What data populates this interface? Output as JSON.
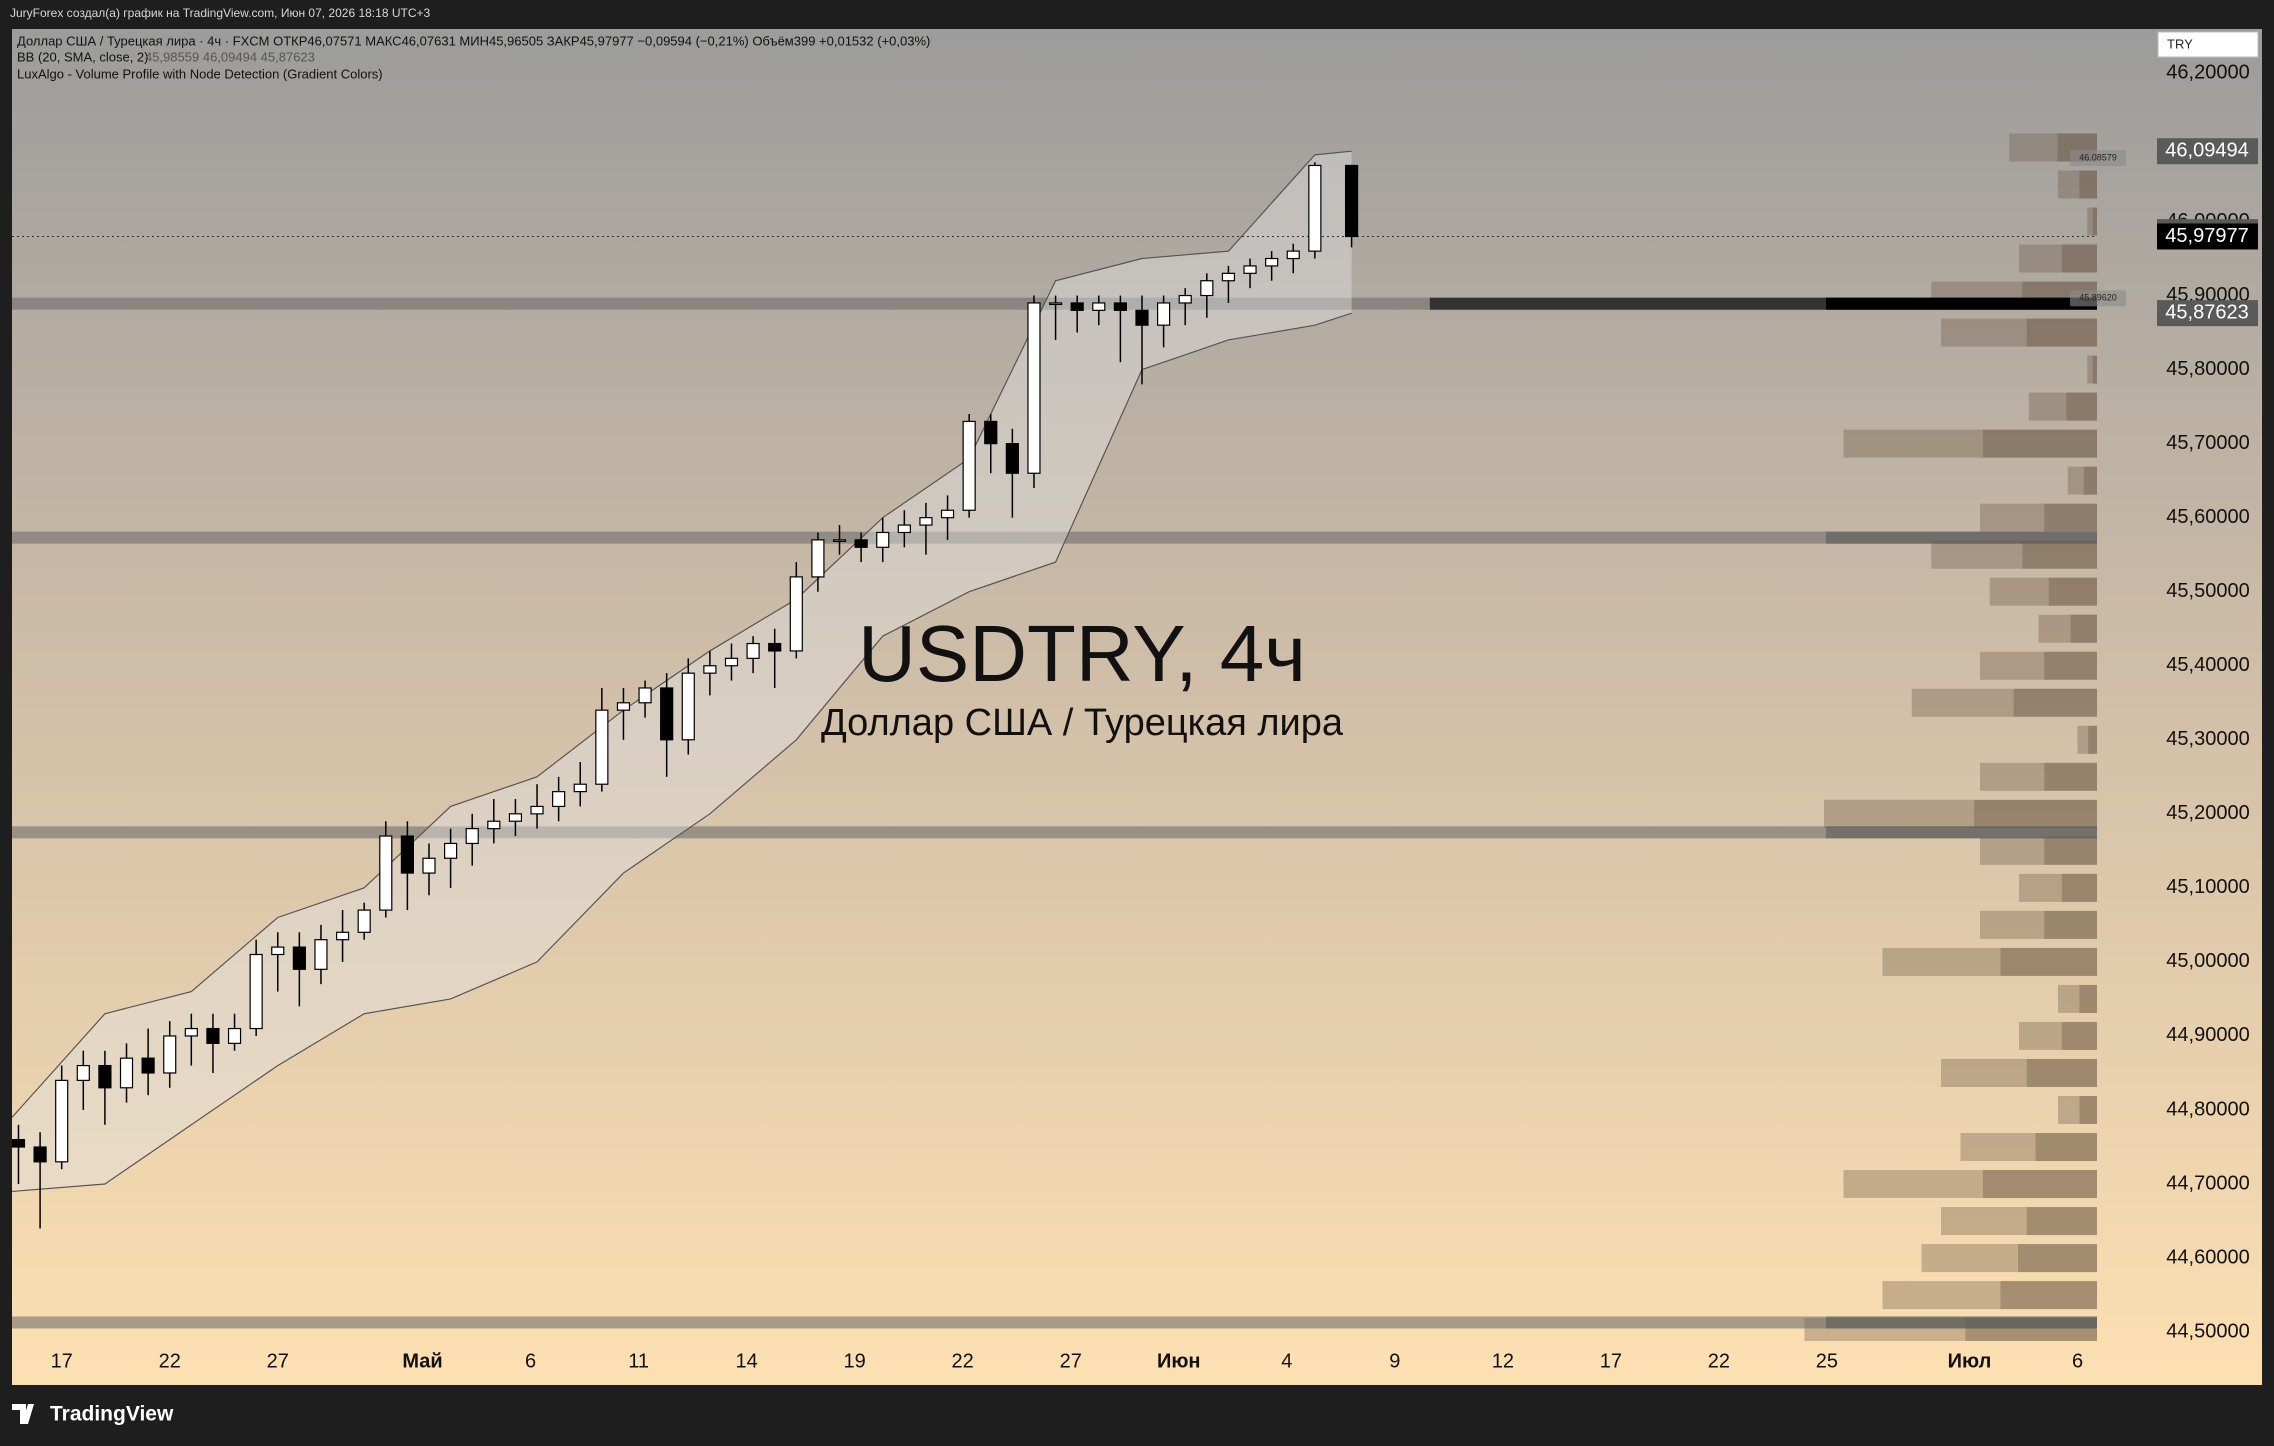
{
  "ui": {
    "author_line": "JuryForex создал(а) график на TradingView.com, Июн 07, 2026 18:18 UTC+3",
    "legend_main": "Доллар США / Турецкая лира · 4ч · FXCM  ОТКР46,07571  МАКС46,07631  МИН45,96505  ЗАКР45,97977  −0,09594 (−0,21%)  Объём399  +0,01532 (+0,03%)",
    "legend_vp": "LuxAlgo - Volume Profile with Node Detection (Gradient Colors)",
    "currency": "TRY",
    "brand": "TradingView"
  },
  "chart_data": {
    "type": "candlestick",
    "title": "USDTRY, 4ч",
    "subtitle": "Доллар США / Турецкая лира",
    "xlim": [
      -2.3,
      94.2
    ],
    "xticks": [
      {
        "value": 0,
        "label": "17"
      },
      {
        "value": 5,
        "label": "22"
      },
      {
        "value": 10,
        "label": "27"
      },
      {
        "value": 16.7,
        "label": "Май",
        "bold": true
      },
      {
        "value": 21.7,
        "label": "6"
      },
      {
        "value": 26.7,
        "label": "11"
      },
      {
        "value": 31.7,
        "label": "14"
      },
      {
        "value": 36.7,
        "label": "19"
      },
      {
        "value": 41.7,
        "label": "22"
      },
      {
        "value": 46.7,
        "label": "27"
      },
      {
        "value": 51.7,
        "label": "Июн",
        "bold": true
      },
      {
        "value": 56.7,
        "label": "4"
      },
      {
        "value": 61.7,
        "label": "9"
      },
      {
        "value": 66.7,
        "label": "12"
      },
      {
        "value": 71.7,
        "label": "17"
      },
      {
        "value": 76.7,
        "label": "22"
      },
      {
        "value": 81.7,
        "label": "25"
      },
      {
        "value": 88.3,
        "label": "Июл",
        "bold": true
      },
      {
        "value": 93.3,
        "label": "6"
      }
    ],
    "ylim": [
      44.488,
      46.26
    ],
    "yticks": [
      {
        "value": 44.5,
        "label": "44,50000"
      },
      {
        "value": 44.6,
        "label": "44,60000"
      },
      {
        "value": 44.7,
        "label": "44,70000"
      },
      {
        "value": 44.8,
        "label": "44,80000"
      },
      {
        "value": 44.9,
        "label": "44,90000"
      },
      {
        "value": 45.0,
        "label": "45,00000"
      },
      {
        "value": 45.1,
        "label": "45,10000"
      },
      {
        "value": 45.2,
        "label": "45,20000"
      },
      {
        "value": 45.3,
        "label": "45,30000"
      },
      {
        "value": 45.4,
        "label": "45,40000"
      },
      {
        "value": 45.5,
        "label": "45,50000"
      },
      {
        "value": 45.6,
        "label": "45,60000"
      },
      {
        "value": 45.7,
        "label": "45,70000"
      },
      {
        "value": 45.8,
        "label": "45,80000"
      },
      {
        "value": 45.9,
        "label": "45,90000"
      },
      {
        "value": 46.0,
        "label": "46,00000"
      },
      {
        "value": 46.1,
        "label": "46,10000"
      },
      {
        "value": 46.2,
        "label": "46,20000"
      }
    ],
    "x": [
      -2,
      -1,
      0,
      1,
      2,
      3,
      4,
      5,
      6,
      7,
      8,
      9,
      10,
      11,
      12,
      13,
      14,
      15,
      16,
      17,
      18,
      19,
      20,
      21,
      22,
      23,
      24,
      25,
      26,
      27,
      28,
      29,
      30,
      31,
      32,
      33,
      34,
      35,
      36,
      37,
      38,
      39,
      40,
      41,
      42,
      43,
      44,
      45,
      46,
      47,
      48,
      49,
      50,
      51,
      52,
      53,
      54,
      55,
      56,
      57,
      58,
      59.7
    ],
    "open": [
      44.76,
      44.75,
      44.73,
      44.84,
      44.86,
      44.83,
      44.87,
      44.85,
      44.9,
      44.91,
      44.89,
      44.91,
      45.01,
      45.02,
      44.99,
      45.03,
      45.04,
      45.07,
      45.17,
      45.12,
      45.14,
      45.16,
      45.18,
      45.19,
      45.2,
      45.21,
      45.23,
      45.24,
      45.34,
      45.35,
      45.37,
      45.3,
      45.39,
      45.4,
      45.41,
      45.43,
      45.42,
      45.52,
      45.57,
      45.57,
      45.56,
      45.58,
      45.59,
      45.6,
      45.61,
      45.73,
      45.7,
      45.66,
      45.89,
      45.89,
      45.88,
      45.89,
      45.88,
      45.86,
      45.89,
      45.9,
      45.92,
      45.93,
      45.94,
      45.95,
      45.96,
      46.07571
    ],
    "high": [
      44.78,
      44.77,
      44.86,
      44.88,
      44.88,
      44.89,
      44.91,
      44.92,
      44.93,
      44.93,
      44.93,
      45.03,
      45.04,
      45.04,
      45.05,
      45.07,
      45.08,
      45.19,
      45.19,
      45.16,
      45.18,
      45.2,
      45.22,
      45.22,
      45.24,
      45.25,
      45.27,
      45.37,
      45.37,
      45.38,
      45.39,
      45.41,
      45.42,
      45.43,
      45.44,
      45.45,
      45.54,
      45.58,
      45.59,
      45.58,
      45.6,
      45.61,
      45.62,
      45.63,
      45.74,
      45.74,
      45.72,
      45.9,
      45.9,
      45.9,
      45.9,
      45.9,
      45.9,
      45.9,
      45.91,
      45.93,
      45.94,
      45.95,
      45.96,
      45.97,
      46.08,
      46.07631
    ],
    "low": [
      44.7,
      44.64,
      44.72,
      44.8,
      44.78,
      44.81,
      44.82,
      44.83,
      44.86,
      44.85,
      44.88,
      44.9,
      44.96,
      44.94,
      44.97,
      45.0,
      45.03,
      45.06,
      45.07,
      45.09,
      45.1,
      45.13,
      45.16,
      45.17,
      45.18,
      45.19,
      45.21,
      45.23,
      45.3,
      45.33,
      45.25,
      45.28,
      45.36,
      45.38,
      45.39,
      45.37,
      45.41,
      45.5,
      45.55,
      45.54,
      45.54,
      45.56,
      45.55,
      45.57,
      45.6,
      45.66,
      45.6,
      45.64,
      45.84,
      45.85,
      45.86,
      45.81,
      45.78,
      45.83,
      45.86,
      45.87,
      45.89,
      45.91,
      45.92,
      45.93,
      45.95,
      45.96505
    ],
    "close": [
      44.75,
      44.73,
      44.84,
      44.86,
      44.83,
      44.87,
      44.85,
      44.9,
      44.91,
      44.89,
      44.91,
      45.01,
      45.02,
      44.99,
      45.03,
      45.04,
      45.07,
      45.17,
      45.12,
      45.14,
      45.16,
      45.18,
      45.19,
      45.2,
      45.21,
      45.23,
      45.24,
      45.34,
      45.35,
      45.37,
      45.3,
      45.39,
      45.4,
      45.41,
      45.43,
      45.42,
      45.52,
      45.57,
      45.57,
      45.56,
      45.58,
      45.59,
      45.6,
      45.61,
      45.73,
      45.7,
      45.66,
      45.89,
      45.89,
      45.88,
      45.89,
      45.88,
      45.86,
      45.89,
      45.9,
      45.92,
      45.93,
      45.94,
      45.95,
      45.96,
      46.07571,
      45.97977
    ],
    "bb": {
      "name": "BB (20, SMA, close, 2)",
      "values_text": "45,98559  46,09494  45,87623",
      "x": [
        -2.3,
        2,
        6,
        10,
        14,
        18,
        22,
        26,
        30,
        34,
        38,
        42,
        46,
        50,
        54,
        58,
        59.7
      ],
      "upper": [
        44.79,
        44.93,
        44.96,
        45.06,
        45.1,
        45.21,
        45.25,
        45.34,
        45.42,
        45.49,
        45.6,
        45.68,
        45.92,
        45.95,
        45.96,
        46.09,
        46.09494
      ],
      "lower": [
        44.69,
        44.7,
        44.78,
        44.86,
        44.93,
        44.95,
        45.0,
        45.12,
        45.2,
        45.3,
        45.44,
        45.5,
        45.54,
        45.8,
        45.84,
        45.86,
        45.87623
      ]
    },
    "volume_profile": {
      "levels": [
        44.5,
        44.55,
        44.6,
        44.65,
        44.7,
        44.75,
        44.8,
        44.85,
        44.9,
        44.95,
        45.0,
        45.05,
        45.1,
        45.15,
        45.2,
        45.25,
        45.3,
        45.35,
        45.4,
        45.45,
        45.5,
        45.55,
        45.6,
        45.65,
        45.7,
        45.75,
        45.8,
        45.85,
        45.9,
        45.95,
        46.0,
        46.05,
        46.1
      ],
      "values": [
        150,
        110,
        90,
        80,
        130,
        70,
        20,
        80,
        40,
        20,
        110,
        60,
        40,
        60,
        140,
        60,
        10,
        95,
        60,
        30,
        55,
        85,
        60,
        15,
        130,
        35,
        5,
        80,
        85,
        40,
        5,
        20,
        45
      ]
    },
    "nodes": [
      45.889,
      45.573,
      45.175,
      44.513
    ],
    "price_labels": [
      {
        "value": 46.09494,
        "label": "46,09494",
        "color": "#5a5a5a"
      },
      {
        "value": 45.98559,
        "label": "45,98559",
        "color": "#5a5a5a"
      },
      {
        "value": 45.97977,
        "label": "45,97977",
        "color": "#000000"
      },
      {
        "value": 45.87623,
        "label": "45,87623",
        "color": "#5a5a5a"
      }
    ],
    "small_labels": [
      {
        "value": 46.08579,
        "label": "46.08579"
      },
      {
        "value": 45.8962,
        "label": "45.89620"
      }
    ]
  }
}
